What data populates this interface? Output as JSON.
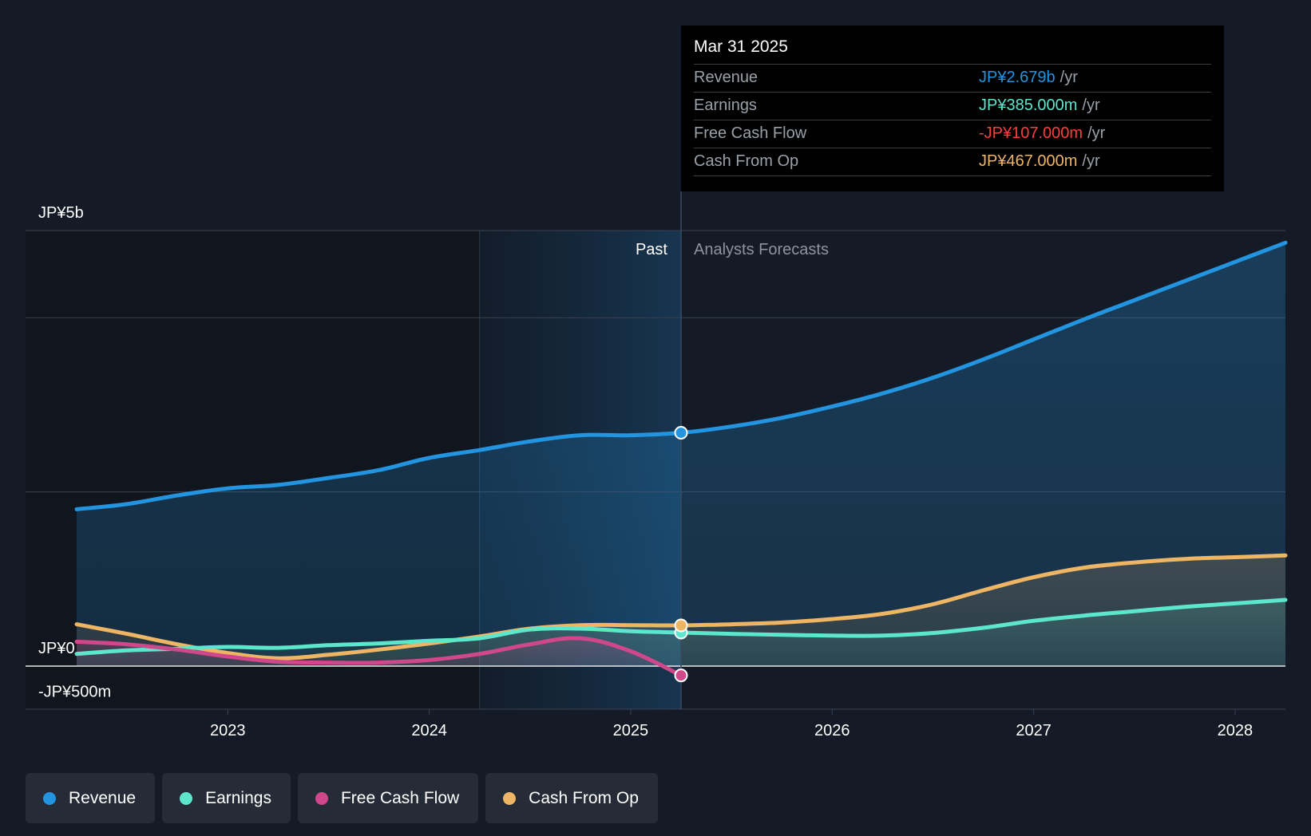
{
  "colors": {
    "revenue": "#2394df",
    "earnings": "#5ce6cc",
    "free_cash_flow": "#d1478b",
    "cash_from_op": "#eeb565",
    "negative": "#ff3d3d"
  },
  "tooltip": {
    "date": "Mar 31 2025",
    "rows": [
      {
        "label": "Revenue",
        "value": "JP¥2.679b",
        "unit": "/yr",
        "color": "#2394df"
      },
      {
        "label": "Earnings",
        "value": "JP¥385.000m",
        "unit": "/yr",
        "color": "#5ce6cc"
      },
      {
        "label": "Free Cash Flow",
        "value": "-JP¥107.000m",
        "unit": "/yr",
        "color": "#ff3d3d"
      },
      {
        "label": "Cash From Op",
        "value": "JP¥467.000m",
        "unit": "/yr",
        "color": "#eeb565"
      }
    ]
  },
  "periods": {
    "past": "Past",
    "forecast": "Analysts Forecasts"
  },
  "legend": [
    {
      "label": "Revenue",
      "color": "#2394df"
    },
    {
      "label": "Earnings",
      "color": "#5ce6cc"
    },
    {
      "label": "Free Cash Flow",
      "color": "#d1478b"
    },
    {
      "label": "Cash From Op",
      "color": "#eeb565"
    }
  ],
  "chart_data": {
    "type": "line",
    "title": "",
    "xlabel": "",
    "ylabel": "",
    "units": "JP¥ millions",
    "xlim": [
      2022.25,
      2028.25
    ],
    "ylim": [
      -500,
      5000
    ],
    "y_tick_values": [
      5000,
      0,
      -500
    ],
    "y_tick_labels": [
      "JP¥5b",
      "JP¥0",
      "-JP¥500m"
    ],
    "x_tick_values": [
      2023,
      2024,
      2025,
      2026,
      2027,
      2028
    ],
    "x_tick_labels": [
      "2023",
      "2024",
      "2025",
      "2026",
      "2027",
      "2028"
    ],
    "gridline_values": [
      5000,
      4000,
      2000
    ],
    "past_end": 2025.25,
    "highlight_start": 2024.25,
    "series": [
      {
        "name": "Revenue",
        "key": "revenue",
        "points": [
          [
            2022.25,
            1800
          ],
          [
            2022.5,
            1860
          ],
          [
            2022.75,
            1960
          ],
          [
            2023.0,
            2040
          ],
          [
            2023.25,
            2080
          ],
          [
            2023.5,
            2160
          ],
          [
            2023.75,
            2250
          ],
          [
            2024.0,
            2390
          ],
          [
            2024.25,
            2480
          ],
          [
            2024.5,
            2580
          ],
          [
            2024.75,
            2650
          ],
          [
            2025.0,
            2650
          ],
          [
            2025.25,
            2679
          ],
          [
            2025.5,
            2750
          ],
          [
            2025.75,
            2850
          ],
          [
            2026.0,
            2980
          ],
          [
            2026.25,
            3130
          ],
          [
            2026.5,
            3310
          ],
          [
            2026.75,
            3520
          ],
          [
            2027.0,
            3750
          ],
          [
            2027.25,
            3980
          ],
          [
            2027.5,
            4200
          ],
          [
            2027.75,
            4420
          ],
          [
            2028.0,
            4640
          ],
          [
            2028.25,
            4860
          ]
        ]
      },
      {
        "name": "Earnings",
        "key": "earnings",
        "points": [
          [
            2022.25,
            140
          ],
          [
            2022.5,
            180
          ],
          [
            2022.75,
            200
          ],
          [
            2023.0,
            220
          ],
          [
            2023.25,
            210
          ],
          [
            2023.5,
            240
          ],
          [
            2023.75,
            260
          ],
          [
            2024.0,
            290
          ],
          [
            2024.25,
            320
          ],
          [
            2024.5,
            420
          ],
          [
            2024.75,
            430
          ],
          [
            2025.0,
            400
          ],
          [
            2025.25,
            385
          ],
          [
            2025.5,
            370
          ],
          [
            2025.75,
            360
          ],
          [
            2026.0,
            350
          ],
          [
            2026.25,
            350
          ],
          [
            2026.5,
            380
          ],
          [
            2026.75,
            440
          ],
          [
            2027.0,
            520
          ],
          [
            2027.25,
            580
          ],
          [
            2027.5,
            630
          ],
          [
            2027.75,
            680
          ],
          [
            2028.0,
            720
          ],
          [
            2028.25,
            760
          ]
        ]
      },
      {
        "name": "Free Cash Flow",
        "key": "free_cash_flow",
        "points": [
          [
            2022.25,
            280
          ],
          [
            2022.5,
            250
          ],
          [
            2022.75,
            190
          ],
          [
            2023.0,
            110
          ],
          [
            2023.25,
            50
          ],
          [
            2023.5,
            40
          ],
          [
            2023.75,
            40
          ],
          [
            2024.0,
            70
          ],
          [
            2024.25,
            140
          ],
          [
            2024.5,
            250
          ],
          [
            2024.75,
            320
          ],
          [
            2025.0,
            170
          ],
          [
            2025.25,
            -107
          ]
        ]
      },
      {
        "name": "Cash From Op",
        "key": "cash_from_op",
        "points": [
          [
            2022.25,
            480
          ],
          [
            2022.5,
            370
          ],
          [
            2022.75,
            250
          ],
          [
            2023.0,
            150
          ],
          [
            2023.25,
            90
          ],
          [
            2023.5,
            130
          ],
          [
            2023.75,
            190
          ],
          [
            2024.0,
            260
          ],
          [
            2024.25,
            340
          ],
          [
            2024.5,
            430
          ],
          [
            2024.75,
            470
          ],
          [
            2025.0,
            470
          ],
          [
            2025.25,
            467
          ],
          [
            2025.5,
            480
          ],
          [
            2025.75,
            500
          ],
          [
            2026.0,
            540
          ],
          [
            2026.25,
            600
          ],
          [
            2026.5,
            710
          ],
          [
            2026.75,
            870
          ],
          [
            2027.0,
            1020
          ],
          [
            2027.25,
            1130
          ],
          [
            2027.5,
            1190
          ],
          [
            2027.75,
            1230
          ],
          [
            2028.0,
            1250
          ],
          [
            2028.25,
            1270
          ]
        ]
      }
    ],
    "highlight": {
      "x": 2025.25,
      "label": "Mar 31 2025"
    }
  }
}
